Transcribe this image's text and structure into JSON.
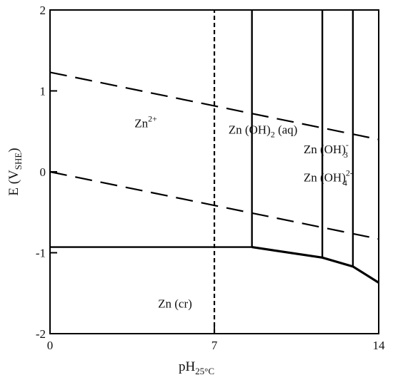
{
  "chart_data": {
    "type": "line",
    "xlabel": {
      "main": "pH",
      "sub": "25°C"
    },
    "ylabel": {
      "main": "E (V",
      "sub": "SHE",
      "close": ")"
    },
    "xlim": [
      0,
      14
    ],
    "ylim": [
      -2,
      2
    ],
    "x_ticks": [
      {
        "value": 0,
        "label": "0"
      },
      {
        "value": 7,
        "label": "7"
      },
      {
        "value": 14,
        "label": "14"
      }
    ],
    "y_ticks": [
      {
        "value": 2,
        "label": "2"
      },
      {
        "value": 1,
        "label": "1"
      },
      {
        "value": 0,
        "label": "0"
      },
      {
        "value": -1,
        "label": "-1"
      },
      {
        "value": -2,
        "label": "-2"
      }
    ],
    "series": [
      {
        "style": "dashed",
        "x": [
          0,
          14
        ],
        "y": [
          1.23,
          0.4
        ]
      },
      {
        "style": "dashed",
        "x": [
          0,
          14
        ],
        "y": [
          0.0,
          -0.83
        ]
      },
      {
        "style": "dashed",
        "x": [
          7,
          7
        ],
        "y": [
          -2,
          2
        ]
      },
      {
        "style": "solid",
        "x": [
          0,
          8.6
        ],
        "y": [
          -0.93,
          -0.93
        ]
      },
      {
        "style": "solid-thick",
        "x": [
          8.6,
          11.6,
          12.9,
          14.0
        ],
        "y": [
          -0.93,
          -1.06,
          -1.17,
          -1.37
        ]
      },
      {
        "style": "solid",
        "x": [
          8.6,
          8.6
        ],
        "y": [
          2,
          -0.93
        ]
      },
      {
        "style": "solid",
        "x": [
          11.6,
          11.6
        ],
        "y": [
          2,
          -1.06
        ]
      },
      {
        "style": "solid",
        "x": [
          12.9,
          12.9
        ],
        "y": [
          2,
          -1.17
        ]
      }
    ],
    "annotations": [
      {
        "id": "zn2",
        "base": "Zn",
        "sup": "2+",
        "sub": "",
        "suffix": "",
        "x": 3.6,
        "y": 0.55
      },
      {
        "id": "znoh2",
        "base": "Zn (OH)",
        "sup": "",
        "sub": "2",
        "suffix": " (aq)",
        "x": 7.6,
        "y": 0.47
      },
      {
        "id": "znoh3",
        "base": "Zn (OH)",
        "sup": "-",
        "sub": "3",
        "suffix": "",
        "x": 10.8,
        "y": 0.23
      },
      {
        "id": "znoh4",
        "base": "Zn (OH)",
        "sup": "2-",
        "sub": "4",
        "suffix": "",
        "x": 10.8,
        "y": -0.12
      },
      {
        "id": "zncr",
        "base": "Zn (cr)",
        "sup": "",
        "sub": "",
        "suffix": "",
        "x": 4.6,
        "y": -1.68
      }
    ]
  }
}
